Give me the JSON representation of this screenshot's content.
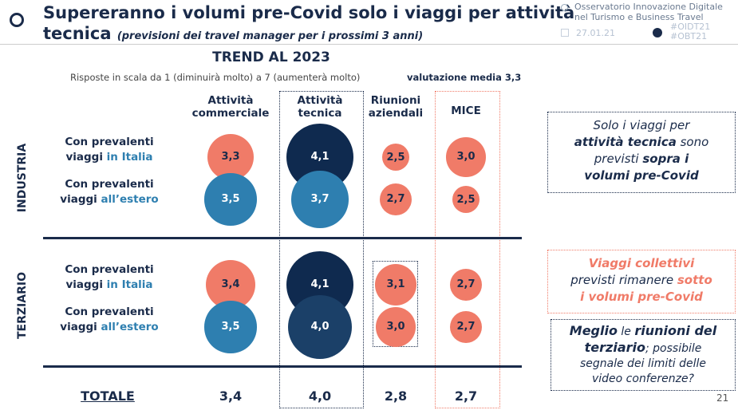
{
  "header": {
    "title_line1": "Supereranno i volumi pre-Covid solo i viaggi per attività",
    "title_line2": "tecnica",
    "subtitle": "(previsioni dei travel manager per i prossimi 3 anni)",
    "org_line1": "Osservatorio Innovazione Digitale",
    "org_line2": "nel Turismo e Business Travel",
    "date": "27.01.21",
    "hashtag1": "#OIDT21",
    "hashtag2": "#OBT21"
  },
  "chart": {
    "heading": "TREND AL 2023",
    "scale_note": "Risposte in scala da 1 (diminuirà molto) a 7 (aumenterà molto)",
    "average": "valutazione media 3,3",
    "columns": [
      "Attività commerciale",
      "Attività tecnica",
      "Riunioni aziendali",
      "MICE"
    ],
    "groups": [
      "INDUSTRIA",
      "TERZIARIO"
    ],
    "row_labels": [
      {
        "a": "Con prevalenti",
        "b": "viaggi ",
        "c": "in Italia"
      },
      {
        "a": "Con prevalenti",
        "b": "viaggi ",
        "c": "all’estero"
      },
      {
        "a": "Con prevalenti",
        "b": "viaggi ",
        "c": "in Italia"
      },
      {
        "a": "Con prevalenti",
        "b": "viaggi ",
        "c": "all’estero"
      }
    ],
    "values": [
      [
        "3,3",
        "4,1",
        "2,5",
        "3,0"
      ],
      [
        "3,5",
        "3,7",
        "2,7",
        "2,5"
      ],
      [
        "3,4",
        "4,1",
        "3,1",
        "2,7"
      ],
      [
        "3,5",
        "4,0",
        "3,0",
        "2,7"
      ]
    ],
    "total_label": "TOTALE",
    "totals": [
      "3,4",
      "4,0",
      "2,8",
      "2,7"
    ],
    "colors": {
      "low": "#f07b68",
      "mid": "#2e7fb0",
      "high": "#0f2a4f",
      "high2": "#1b4068"
    }
  },
  "notes": {
    "n1": [
      "Solo i viaggi per",
      "attività tecnica",
      " sono",
      "previsti ",
      "sopra i",
      "volumi pre-Covid"
    ],
    "n2": [
      "Viaggi collettivi",
      "previsti rimanere ",
      "sotto",
      "i volumi pre-Covid"
    ],
    "n3": [
      "Meglio",
      " le ",
      "riunioni del",
      "terziario",
      "; possibile",
      "segnale dei limiti delle",
      "video conferenze?"
    ]
  },
  "page_number": "21"
}
